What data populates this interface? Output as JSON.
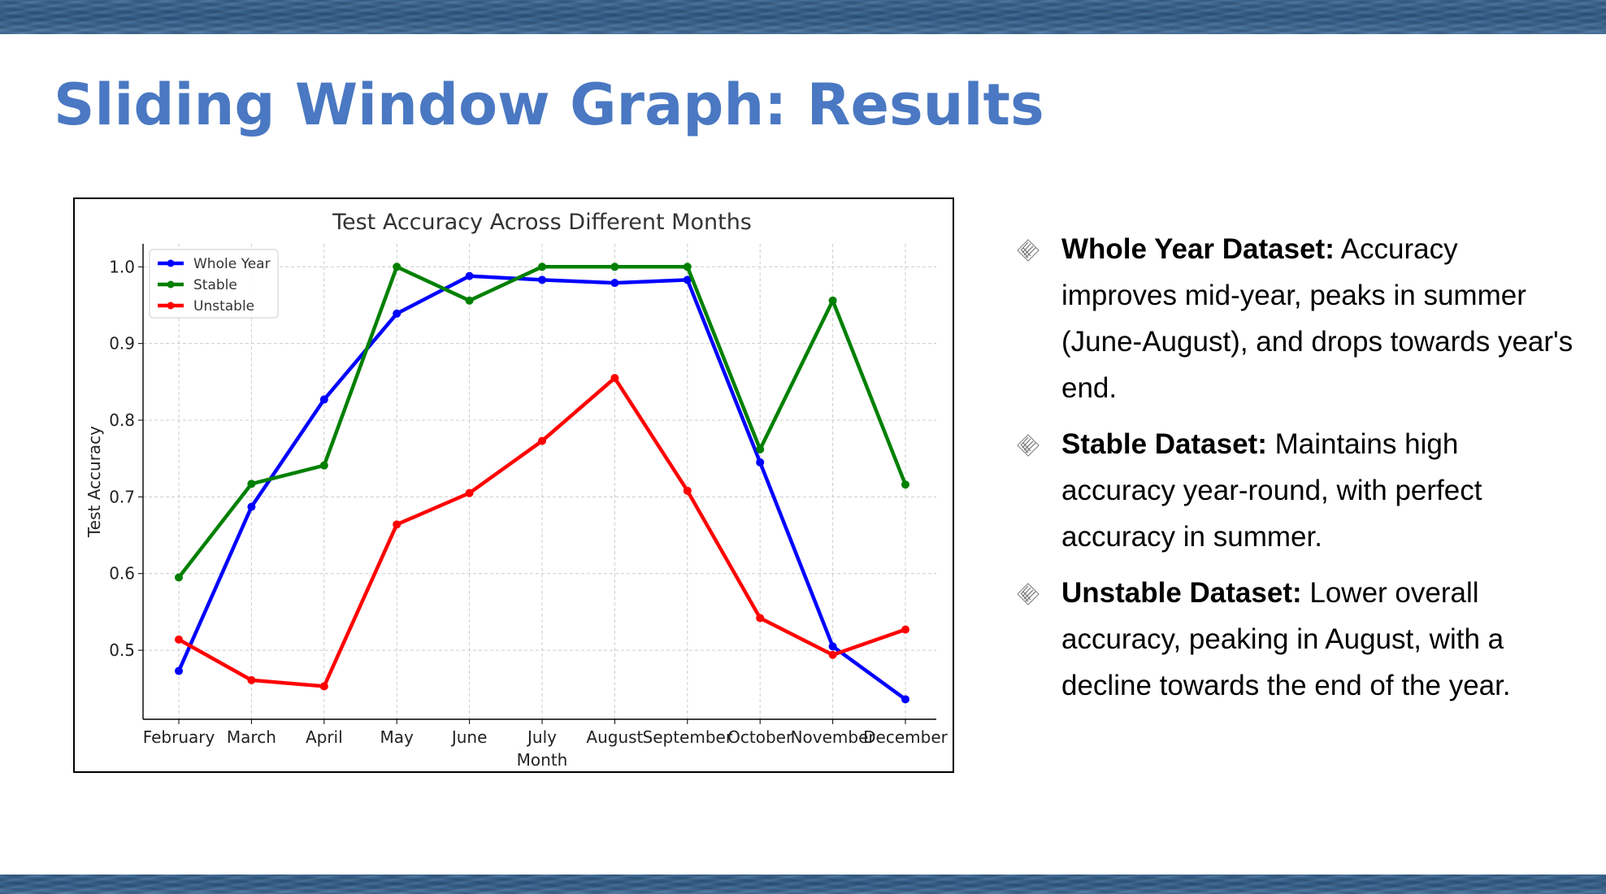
{
  "slide": {
    "title": "Sliding Window Graph: Results"
  },
  "bullets": [
    {
      "heading": "Whole Year Dataset:",
      "text": " Accuracy improves mid-year, peaks in summer (June-August), and drops towards year's end.",
      "icon": "scribble-diamond-icon"
    },
    {
      "heading": "Stable Dataset:",
      "text": " Maintains high accuracy year-round, with perfect accuracy in summer.",
      "icon": "scribble-diamond-icon"
    },
    {
      "heading": "Unstable Dataset:",
      "text": " Lower overall accuracy, peaking in August, with a decline towards the end of the year.",
      "icon": "scribble-diamond-icon"
    }
  ],
  "chart_data": {
    "type": "line",
    "title": "Test Accuracy Across Different Months",
    "xlabel": "Month",
    "ylabel": "Test Accuracy",
    "categories": [
      "February",
      "March",
      "April",
      "May",
      "June",
      "July",
      "August",
      "September",
      "October",
      "November",
      "December"
    ],
    "ylim": [
      0.41,
      1.03
    ],
    "yticks": [
      0.5,
      0.6,
      0.7,
      0.8,
      0.9,
      1.0
    ],
    "grid": true,
    "legend_position": "top-left",
    "series": [
      {
        "name": "Whole Year",
        "color": "#0000ff",
        "values": [
          0.473,
          0.687,
          0.827,
          0.939,
          0.988,
          0.983,
          0.979,
          0.983,
          0.745,
          0.505,
          0.436
        ]
      },
      {
        "name": "Stable",
        "color": "#008000",
        "values": [
          0.595,
          0.717,
          0.741,
          1.0,
          0.956,
          1.0,
          1.0,
          1.0,
          0.762,
          0.956,
          0.716
        ]
      },
      {
        "name": "Unstable",
        "color": "#ff0000",
        "values": [
          0.514,
          0.461,
          0.453,
          0.664,
          0.705,
          0.773,
          0.855,
          0.708,
          0.542,
          0.494,
          0.527
        ]
      }
    ]
  }
}
